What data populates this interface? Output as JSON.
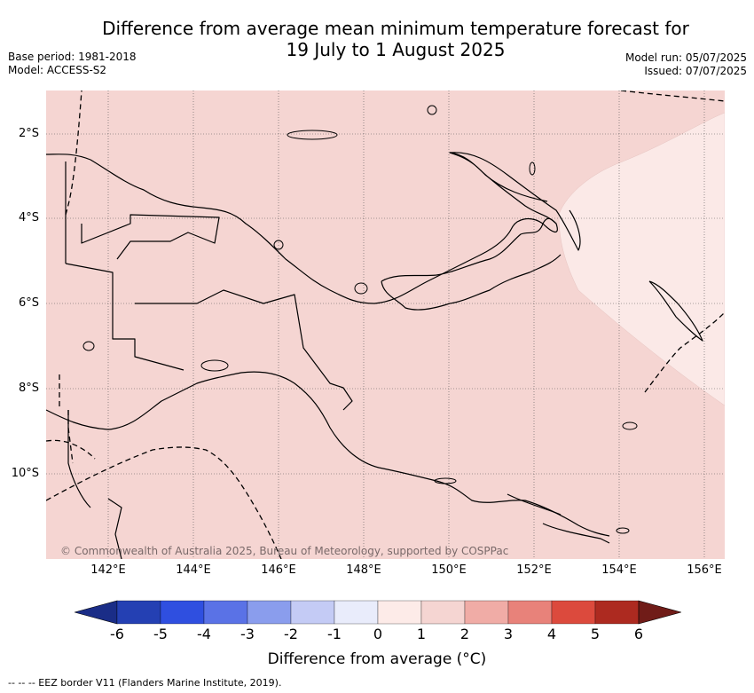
{
  "title": {
    "line1": "Difference from average mean minimum temperature forecast for",
    "line2": "19 July to 1 August 2025"
  },
  "meta": {
    "base_period": "Base period: 1981-2018",
    "model": "Model: ACCESS-S2",
    "model_run": "Model run: 05/07/2025",
    "issued": "Issued: 07/07/2025"
  },
  "map": {
    "lat_labels": [
      "2°S",
      "4°S",
      "6°S",
      "8°S",
      "10°S"
    ],
    "lon_labels": [
      "142°E",
      "144°E",
      "146°E",
      "148°E",
      "150°E",
      "152°E",
      "154°E",
      "156°E"
    ],
    "copyright": "© Commonwealth of Australia 2025, Bureau of Meteorology, supported by COSPPac",
    "region_fill_colors": {
      "main": "#f5d5d2",
      "eastern": "#fbe9e7"
    }
  },
  "colorbar": {
    "title": "Difference from average (°C)",
    "tick_labels": [
      "-6",
      "-5",
      "-4",
      "-3",
      "-2",
      "-1",
      "0",
      "1",
      "2",
      "3",
      "4",
      "5",
      "6"
    ],
    "colors": [
      "#1a2d87",
      "#2440b3",
      "#2f4fe0",
      "#5a72e6",
      "#8a9ded",
      "#c4cbf5",
      "#e9ecfb",
      "#fdebe8",
      "#f5d5d2",
      "#f0aca6",
      "#e8827a",
      "#dc4a3d",
      "#ad2a20",
      "#701c18"
    ]
  },
  "footer": "-- -- -- EEZ border V11 (Flanders Marine Institute, 2019)."
}
